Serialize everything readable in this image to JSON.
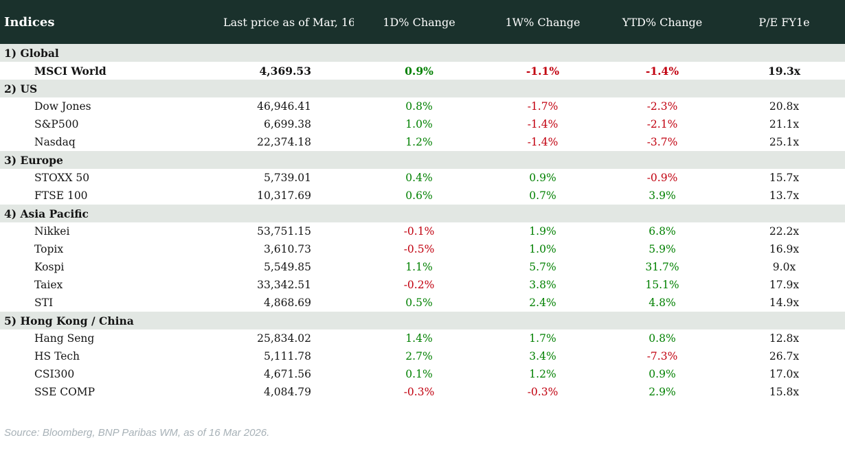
{
  "chart_data": {
    "type": "table",
    "title": "Indices",
    "columns": [
      "Last price as of Mar, 16",
      "1D% Change",
      "1W% Change",
      "YTD% Change",
      "P/E FY1e"
    ],
    "sections": [
      {
        "label": "1) Global",
        "rows": [
          {
            "name": "MSCI World",
            "price": "4,369.53",
            "d1": "0.9%",
            "w1": "-1.1%",
            "ytd": "-1.4%",
            "pe": "19.3x",
            "bold": true
          }
        ]
      },
      {
        "label": "2) US",
        "rows": [
          {
            "name": "Dow Jones",
            "price": "46,946.41",
            "d1": "0.8%",
            "w1": "-1.7%",
            "ytd": "-2.3%",
            "pe": "20.8x"
          },
          {
            "name": "S&P500",
            "price": "6,699.38",
            "d1": "1.0%",
            "w1": "-1.4%",
            "ytd": "-2.1%",
            "pe": "21.1x"
          },
          {
            "name": "Nasdaq",
            "price": "22,374.18",
            "d1": "1.2%",
            "w1": "-1.4%",
            "ytd": "-3.7%",
            "pe": "25.1x"
          }
        ]
      },
      {
        "label": "3) Europe",
        "rows": [
          {
            "name": "STOXX 50",
            "price": "5,739.01",
            "d1": "0.4%",
            "w1": "0.9%",
            "ytd": "-0.9%",
            "pe": "15.7x"
          },
          {
            "name": "FTSE 100",
            "price": "10,317.69",
            "d1": "0.6%",
            "w1": "0.7%",
            "ytd": "3.9%",
            "pe": "13.7x"
          }
        ]
      },
      {
        "label": "4) Asia Pacific",
        "rows": [
          {
            "name": "Nikkei",
            "price": "53,751.15",
            "d1": "-0.1%",
            "w1": "1.9%",
            "ytd": "6.8%",
            "pe": "22.2x"
          },
          {
            "name": "Topix",
            "price": "3,610.73",
            "d1": "-0.5%",
            "w1": "1.0%",
            "ytd": "5.9%",
            "pe": "16.9x"
          },
          {
            "name": "Kospi",
            "price": "5,549.85",
            "d1": "1.1%",
            "w1": "5.7%",
            "ytd": "31.7%",
            "pe": "9.0x"
          },
          {
            "name": "Taiex",
            "price": "33,342.51",
            "d1": "-0.2%",
            "w1": "3.8%",
            "ytd": "15.1%",
            "pe": "17.9x"
          },
          {
            "name": "STI",
            "price": "4,868.69",
            "d1": "0.5%",
            "w1": "2.4%",
            "ytd": "4.8%",
            "pe": "14.9x"
          }
        ]
      },
      {
        "label": "5) Hong Kong / China",
        "rows": [
          {
            "name": "Hang Seng",
            "price": "25,834.02",
            "d1": "1.4%",
            "w1": "1.7%",
            "ytd": "0.8%",
            "pe": "12.8x"
          },
          {
            "name": "HS Tech",
            "price": "5,111.78",
            "d1": "2.7%",
            "w1": "3.4%",
            "ytd": "-7.3%",
            "pe": "26.7x"
          },
          {
            "name": "CSI300",
            "price": "4,671.56",
            "d1": "0.1%",
            "w1": "1.2%",
            "ytd": "0.9%",
            "pe": "17.0x"
          },
          {
            "name": "SSE COMP",
            "price": "4,084.79",
            "d1": "-0.3%",
            "w1": "-0.3%",
            "ytd": "2.9%",
            "pe": "15.8x"
          }
        ]
      }
    ]
  },
  "footer": {
    "source": "Source: Bloomberg, BNP Paribas WM, as of 16 Mar 2026."
  },
  "colors": {
    "header_bg": "#1a312c",
    "section_bg": "#e2e7e3",
    "positive": "#008000",
    "negative": "#c1000f",
    "footer_text": "#a7b1b7"
  }
}
